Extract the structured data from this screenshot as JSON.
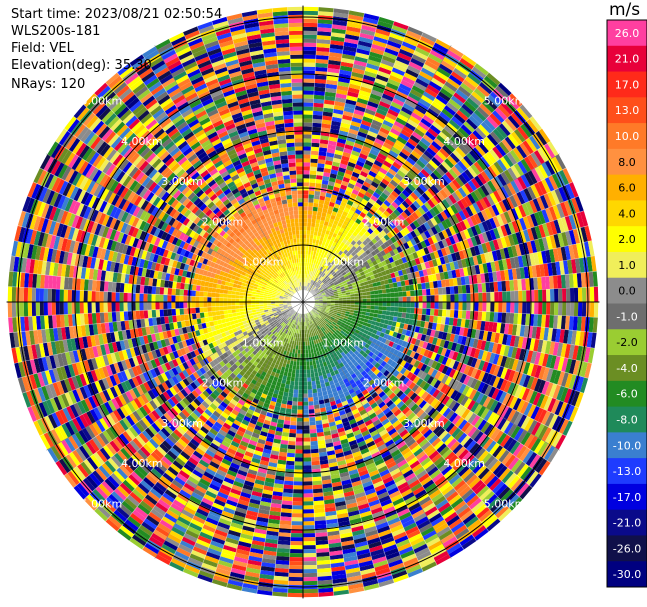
{
  "header": {
    "start_time": "Start time: 2023/08/21 02:50:54",
    "instrument": "WLS200s-181",
    "field": "Field: VEL",
    "elevation": "Elevation(deg): 35.30",
    "nrays": "NRays: 120"
  },
  "colorbar": {
    "unit": "m/s",
    "bins": [
      {
        "label": "26.0",
        "color": "#ff3fa0"
      },
      {
        "label": "21.0",
        "color": "#e8003a"
      },
      {
        "label": "17.0",
        "color": "#ff2a1a"
      },
      {
        "label": "13.0",
        "color": "#ff4f1a"
      },
      {
        "label": "10.0",
        "color": "#ff7a28"
      },
      {
        "label": "8.0",
        "color": "#ff9140"
      },
      {
        "label": "6.0",
        "color": "#ffb000"
      },
      {
        "label": "4.0",
        "color": "#ffd700"
      },
      {
        "label": "2.0",
        "color": "#ffff00"
      },
      {
        "label": "1.0",
        "color": "#f0ee5a"
      },
      {
        "label": "0.0",
        "color": "#8c8c8c"
      },
      {
        "label": "-1.0",
        "color": "#6e6e6e"
      },
      {
        "label": "-2.0",
        "color": "#9acd32"
      },
      {
        "label": "-4.0",
        "color": "#6b8e23"
      },
      {
        "label": "-6.0",
        "color": "#228b22"
      },
      {
        "label": "-8.0",
        "color": "#1f8a5a"
      },
      {
        "label": "-10.0",
        "color": "#3a7fd0"
      },
      {
        "label": "-13.0",
        "color": "#1e3cff"
      },
      {
        "label": "-17.0",
        "color": "#0000e0"
      },
      {
        "label": "-21.0",
        "color": "#0a0a8a"
      },
      {
        "label": "-26.0",
        "color": "#10104a"
      },
      {
        "label": "-30.0",
        "color": "#000080"
      }
    ]
  },
  "chart_data": {
    "type": "heatmap",
    "field": "VEL",
    "units": "m/s",
    "nrays": 120,
    "range_rings_km": [
      1,
      2,
      3,
      4,
      5
    ],
    "ring_labels": [
      "1.00km",
      "2.00km",
      "3.00km",
      "4.00km",
      "5.00km"
    ],
    "max_range_km": 5.2,
    "vmin": -30.0,
    "vmax": 26.0
  }
}
